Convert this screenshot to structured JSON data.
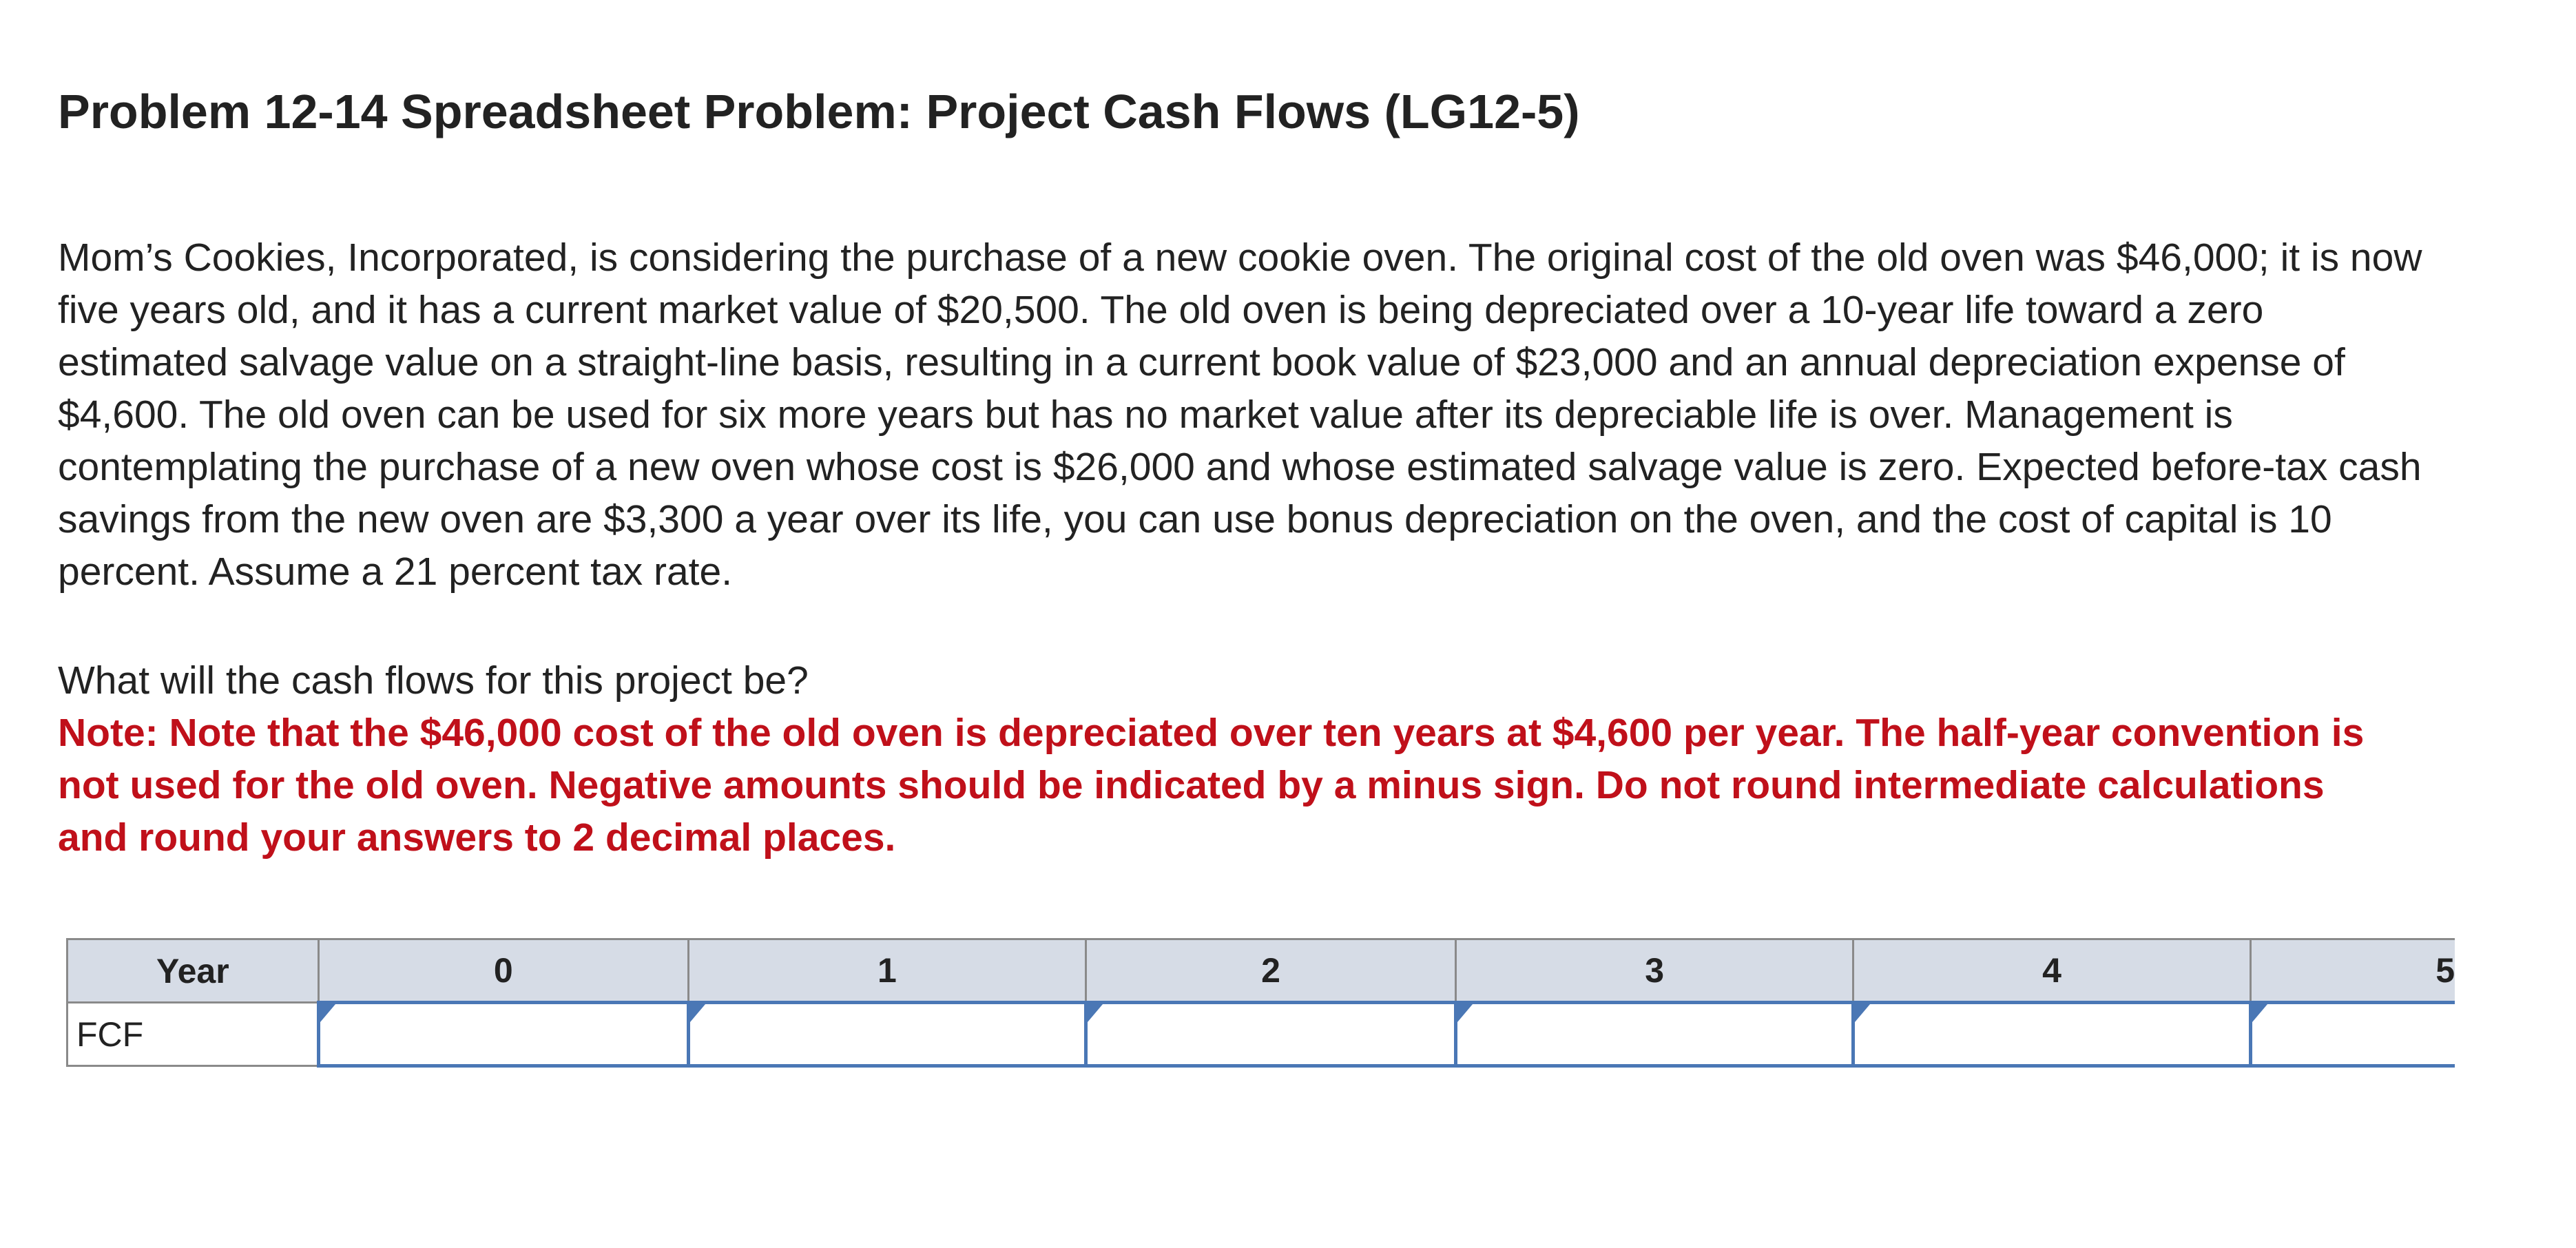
{
  "problem": {
    "title": "Problem 12-14 Spreadsheet Problem: Project Cash Flows (LG12-5)",
    "body": "Mom’s Cookies, Incorporated, is considering the purchase of a new cookie oven. The original cost of the old oven was $46,000; it is now five years old, and it has a current market value of $20,500. The old oven is being depreciated over a 10-year life toward a zero estimated salvage value on a straight-line basis, resulting in a current book value of $23,000 and an annual depreciation expense of $4,600. The old oven can be used for six more years but has no market value after its depreciable life is over. Management is contemplating the purchase of a new oven whose cost is $26,000 and whose estimated salvage value is zero. Expected before-tax cash savings from the new oven are $3,300 a year over its life, you can use bonus depreciation on the oven, and the cost of capital is 10 percent. Assume a 21 percent tax rate.",
    "question": "What will the cash flows for this project be?",
    "note": "Note: Note that the $46,000 cost of the old oven is depreciated over ten years at $4,600 per year. The half-year convention is not used for the old oven. Negative amounts should be indicated by a minus sign. Do not round intermediate calculations and round your answers to 2 decimal places."
  },
  "table": {
    "header_label": "Year",
    "years": [
      "0",
      "1",
      "2",
      "3",
      "4",
      "5"
    ],
    "row_label": "FCF",
    "values": [
      "",
      "",
      "",
      "",
      "",
      ""
    ]
  },
  "colors": {
    "note_red": "#c0101a",
    "header_bg": "#d6dce6",
    "input_border_blue": "#4a77b5"
  }
}
